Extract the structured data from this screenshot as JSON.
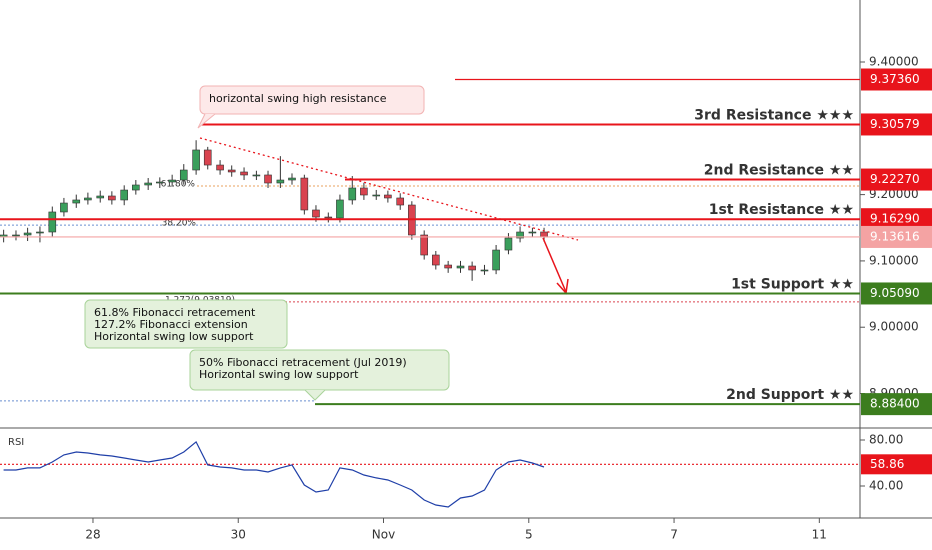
{
  "chart_data": [
    {
      "type": "candlestick",
      "x": [
        -1.23,
        -1.06,
        -0.9,
        -0.73,
        -0.56,
        -0.4,
        -0.23,
        -0.07,
        0.1,
        0.26,
        0.43,
        0.59,
        0.76,
        0.92,
        1.09,
        1.25,
        1.42,
        1.58,
        1.75,
        1.91,
        2.08,
        2.25,
        2.41,
        2.58,
        2.74,
        2.91,
        3.07,
        3.24,
        3.4,
        3.57,
        3.73,
        3.9,
        4.06,
        4.23,
        4.39,
        4.56,
        4.72,
        4.89,
        5.06,
        5.22,
        5.39,
        5.55,
        5.72,
        5.88,
        6.05,
        6.21
      ],
      "open": [
        9.136,
        9.1391,
        9.1391,
        9.1421,
        9.1436,
        9.1738,
        9.1873,
        9.1919,
        9.1949,
        9.1979,
        9.1919,
        9.2069,
        9.2145,
        9.2175,
        9.219,
        9.222,
        9.2371,
        9.2673,
        9.2446,
        9.2371,
        9.2341,
        9.2296,
        9.2296,
        9.2175,
        9.222,
        9.225,
        9.1768,
        9.1662,
        9.1647,
        9.1919,
        9.21,
        9.1994,
        9.1994,
        9.1949,
        9.1843,
        9.1391,
        9.1089,
        9.0938,
        9.0893,
        9.0923,
        9.0863,
        9.0863,
        9.1164,
        9.1345,
        9.1436,
        9.1436
      ],
      "high": [
        9.147,
        9.146,
        9.15,
        9.152,
        9.182,
        9.195,
        9.2,
        9.203,
        9.206,
        9.205,
        9.214,
        9.222,
        9.225,
        9.226,
        9.23,
        9.246,
        9.282,
        9.272,
        9.252,
        9.244,
        9.241,
        9.236,
        9.236,
        9.258,
        9.232,
        9.23,
        9.184,
        9.173,
        9.2,
        9.228,
        9.218,
        9.207,
        9.206,
        9.202,
        9.19,
        9.146,
        9.115,
        9.1,
        9.1,
        9.099,
        9.094,
        9.124,
        9.142,
        9.152,
        9.15,
        9.15
      ],
      "low": [
        9.128,
        9.131,
        9.13,
        9.128,
        9.137,
        9.167,
        9.18,
        9.185,
        9.188,
        9.185,
        9.184,
        9.2,
        9.207,
        9.21,
        9.212,
        9.215,
        9.23,
        9.238,
        9.23,
        9.227,
        9.222,
        9.222,
        9.21,
        9.21,
        9.215,
        9.17,
        9.159,
        9.158,
        9.158,
        9.185,
        9.192,
        9.192,
        9.188,
        9.177,
        9.132,
        9.102,
        9.087,
        9.082,
        9.082,
        9.07,
        9.079,
        9.08,
        9.11,
        9.128,
        9.136,
        9.129
      ],
      "close": [
        9.1391,
        9.1391,
        9.1421,
        9.1436,
        9.1738,
        9.1873,
        9.1919,
        9.1949,
        9.1979,
        9.1919,
        9.2069,
        9.2145,
        9.2175,
        9.219,
        9.222,
        9.2371,
        9.2673,
        9.2446,
        9.2371,
        9.2341,
        9.2296,
        9.2296,
        9.2175,
        9.222,
        9.225,
        9.1768,
        9.1662,
        9.1647,
        9.1919,
        9.21,
        9.1994,
        9.1994,
        9.1949,
        9.1843,
        9.1391,
        9.1089,
        9.0938,
        9.0893,
        9.0923,
        9.0863,
        9.0863,
        9.1164,
        9.1345,
        9.1436,
        9.1436,
        9.136
      ],
      "up_color": "#3a9f5c",
      "down_color": "#d9434f",
      "xlim": [
        -1.28,
        10.56
      ],
      "xticks": [
        {
          "value": 0,
          "label": "28"
        },
        {
          "value": 2,
          "label": "30"
        },
        {
          "value": 4,
          "label": "Nov"
        },
        {
          "value": 6,
          "label": "5"
        },
        {
          "value": 8,
          "label": "7"
        },
        {
          "value": 10,
          "label": "11"
        }
      ],
      "ylim": [
        8.848,
        9.4935
      ],
      "yticks": [
        {
          "value": 8.9,
          "label": "8.90000"
        },
        {
          "value": 9.0,
          "label": "9.00000"
        },
        {
          "value": 9.1,
          "label": "9.10000"
        },
        {
          "value": 9.2,
          "label": "9.20000"
        },
        {
          "value": 9.4,
          "label": "9.40000"
        }
      ],
      "levels": [
        {
          "value": 9.3736,
          "label": "9.37360",
          "color": "#e8141b"
        },
        {
          "value": 9.30579,
          "label": "9.30579",
          "name": "3rd Resistance ★★★",
          "color": "#e8141b"
        },
        {
          "value": 9.2227,
          "label": "9.22270",
          "name": "2nd Resistance ★★",
          "color": "#e8141b"
        },
        {
          "value": 9.1629,
          "label": "9.16290",
          "name": "1st Resistance ★★",
          "color": "#e8141b"
        },
        {
          "value": 9.13616,
          "label": "9.13616",
          "color": "#f4a3a3"
        },
        {
          "value": 9.0509,
          "label": "9.05090",
          "name": "1st Support ★★",
          "color": "#3c7d1e"
        },
        {
          "value": 8.884,
          "label": "8.88400",
          "name": "2nd Support ★★",
          "color": "#3c7d1e"
        }
      ],
      "fib_lines": [
        {
          "value": 9.213,
          "label": "61.80%",
          "color": "#e8a25c"
        },
        {
          "value": 9.154,
          "label": "38.20%",
          "color": "#6a8fd0"
        },
        {
          "value": 9.03819,
          "label": "1.272(9.03819)",
          "color": "#d9434f"
        },
        {
          "value": 8.889,
          "color": "#6a8fd0"
        }
      ],
      "annotations": [
        {
          "lines": [
            "horizontal swing high resistance"
          ]
        },
        {
          "lines": [
            "61.8% Fibonacci retracement",
            "127.2% Fibonacci extension",
            "Horizontal swing low support"
          ]
        },
        {
          "lines": [
            "50% Fibonacci retracement (Jul 2019)",
            "Horizontal swing low support"
          ]
        }
      ]
    },
    {
      "type": "line",
      "title": "RSI",
      "x": [
        -1.23,
        -1.06,
        -0.9,
        -0.73,
        -0.56,
        -0.4,
        -0.23,
        -0.07,
        0.1,
        0.26,
        0.43,
        0.59,
        0.76,
        0.92,
        1.09,
        1.25,
        1.42,
        1.58,
        1.75,
        1.91,
        2.08,
        2.25,
        2.41,
        2.58,
        2.74,
        2.91,
        3.07,
        3.24,
        3.4,
        3.57,
        3.73,
        3.9,
        4.06,
        4.23,
        4.39,
        4.56,
        4.72,
        4.89,
        5.06,
        5.22,
        5.39,
        5.55,
        5.72,
        5.88,
        6.05,
        6.21
      ],
      "values": [
        53.9,
        53.9,
        55.7,
        55.7,
        60.9,
        67.0,
        69.6,
        68.7,
        67.0,
        66.1,
        64.3,
        62.6,
        60.9,
        62.6,
        64.3,
        69.6,
        78.3,
        58.3,
        56.5,
        55.7,
        53.9,
        53.9,
        52.2,
        55.7,
        58.3,
        40.9,
        34.8,
        36.5,
        55.7,
        53.9,
        49.6,
        47.0,
        45.2,
        40.9,
        36.5,
        27.8,
        23.5,
        21.7,
        29.6,
        31.3,
        36.5,
        53.9,
        60.9,
        62.6,
        60.0,
        56.5
      ],
      "color": "#1f3fa8",
      "xlim": [
        -1.28,
        10.56
      ],
      "ylim": [
        12.17,
        90.43
      ],
      "yticks": [
        {
          "value": 40,
          "label": "40.00"
        },
        {
          "value": 80,
          "label": "80.00"
        }
      ],
      "level": {
        "value": 58.86,
        "label": "58.86",
        "color": "#e8141b"
      }
    }
  ]
}
